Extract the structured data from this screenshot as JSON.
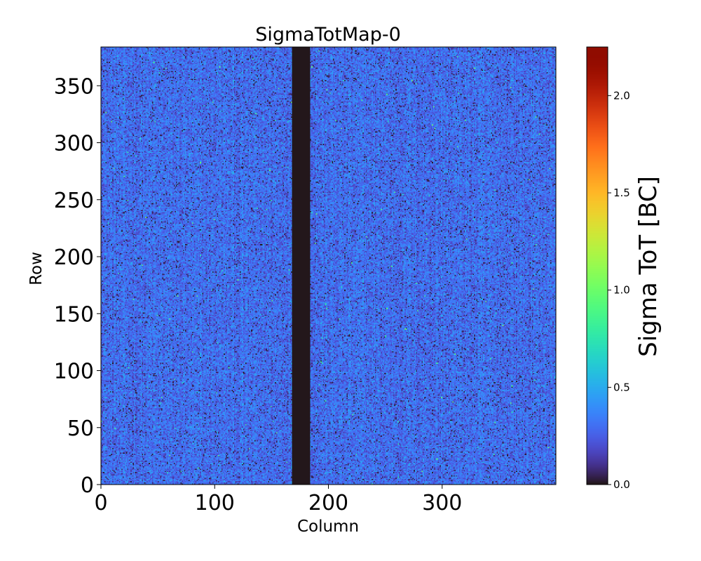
{
  "chart_data": {
    "type": "heatmap",
    "title": "SigmaTotMap-0",
    "xlabel": "Column",
    "ylabel": "Row",
    "colorbar_label": "Sigma ToT [BC]",
    "colormap": "turbo",
    "x_range": [
      0,
      400
    ],
    "y_range": [
      0,
      384
    ],
    "x_ticks": [
      0,
      100,
      200,
      300
    ],
    "x_tick_labels": [
      "0",
      "100",
      "200",
      "300"
    ],
    "y_ticks": [
      0,
      50,
      100,
      150,
      200,
      250,
      300,
      350
    ],
    "y_tick_labels": [
      "0",
      "50",
      "100",
      "150",
      "200",
      "250",
      "300",
      "350"
    ],
    "color_range": [
      0,
      2.25
    ],
    "colorbar_ticks": [
      0.0,
      0.5,
      1.0,
      1.5,
      2.0
    ],
    "colorbar_tick_labels": [
      "0.0",
      "0.5",
      "1.0",
      "1.5",
      "2.0"
    ],
    "dead_columns": [
      168,
      184
    ],
    "dead_value": 0.0,
    "typical_value_range": [
      0.0,
      0.55
    ],
    "typical_mean": 0.32
  }
}
